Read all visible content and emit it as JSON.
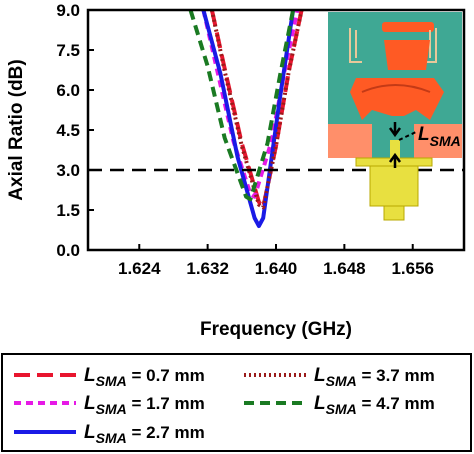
{
  "chart_data": {
    "type": "line",
    "xlabel": "Frequency (GHz)",
    "ylabel": "Axial Ratio (dB)",
    "xlim": [
      1.618,
      1.662
    ],
    "ylim": [
      0,
      9
    ],
    "x_ticks": [
      "1.624",
      "1.632",
      "1.640",
      "1.648",
      "1.656"
    ],
    "y_ticks": [
      "0.0",
      "1.5",
      "3.0",
      "4.5",
      "6.0",
      "7.5",
      "9.0"
    ],
    "reference_line": {
      "y": 3.0,
      "style": "dashed"
    },
    "grid": false,
    "legend_position": "bottom",
    "series": [
      {
        "name": "L_SMA = 0.7 mm",
        "color": "#e8152e",
        "dash": "long-dash",
        "x": [
          1.6325,
          1.634,
          1.636,
          1.638,
          1.6385,
          1.64,
          1.6415,
          1.643
        ],
        "y": [
          9.0,
          6.8,
          4.0,
          1.8,
          1.6,
          3.9,
          6.7,
          9.0
        ]
      },
      {
        "name": "L_SMA = 1.7 mm",
        "color": "#e619e6",
        "dash": "short-dash",
        "x": [
          1.6315,
          1.633,
          1.635,
          1.637,
          1.6375,
          1.6395,
          1.641,
          1.6425
        ],
        "y": [
          9.0,
          6.9,
          4.1,
          2.1,
          2.0,
          4.1,
          6.7,
          9.0
        ]
      },
      {
        "name": "L_SMA = 2.7 mm",
        "color": "#1a1ae6",
        "dash": "solid",
        "x": [
          1.6315,
          1.6335,
          1.6355,
          1.6375,
          1.638,
          1.6385,
          1.6405,
          1.642
        ],
        "y": [
          9.0,
          6.6,
          3.5,
          1.2,
          0.9,
          1.2,
          5.8,
          9.0
        ]
      },
      {
        "name": "L_SMA = 3.7 mm",
        "color": "#9b1b1b",
        "dash": "dotted",
        "x": [
          1.6325,
          1.634,
          1.636,
          1.638,
          1.6385,
          1.64,
          1.6415,
          1.643
        ],
        "y": [
          9.0,
          6.7,
          3.9,
          1.7,
          1.6,
          3.9,
          6.7,
          9.0
        ]
      },
      {
        "name": "L_SMA = 4.7 mm",
        "color": "#1a7a22",
        "dash": "dashed",
        "x": [
          1.63,
          1.632,
          1.634,
          1.6365,
          1.637,
          1.639,
          1.6405,
          1.642
        ],
        "y": [
          9.0,
          6.9,
          4.2,
          2.0,
          1.9,
          4.0,
          6.6,
          9.0
        ]
      }
    ]
  },
  "inset": {
    "label_main": "L",
    "label_sub": "SMA"
  },
  "legend": [
    {
      "symbol": "L",
      "sub": "SMA",
      "value": " = 0.7 mm"
    },
    {
      "symbol": "L",
      "sub": "SMA",
      "value": " = 3.7 mm"
    },
    {
      "symbol": "L",
      "sub": "SMA",
      "value": " = 1.7 mm"
    },
    {
      "symbol": "L",
      "sub": "SMA",
      "value": " = 4.7 mm"
    },
    {
      "symbol": "L",
      "sub": "SMA",
      "value": " = 2.7 mm"
    }
  ]
}
